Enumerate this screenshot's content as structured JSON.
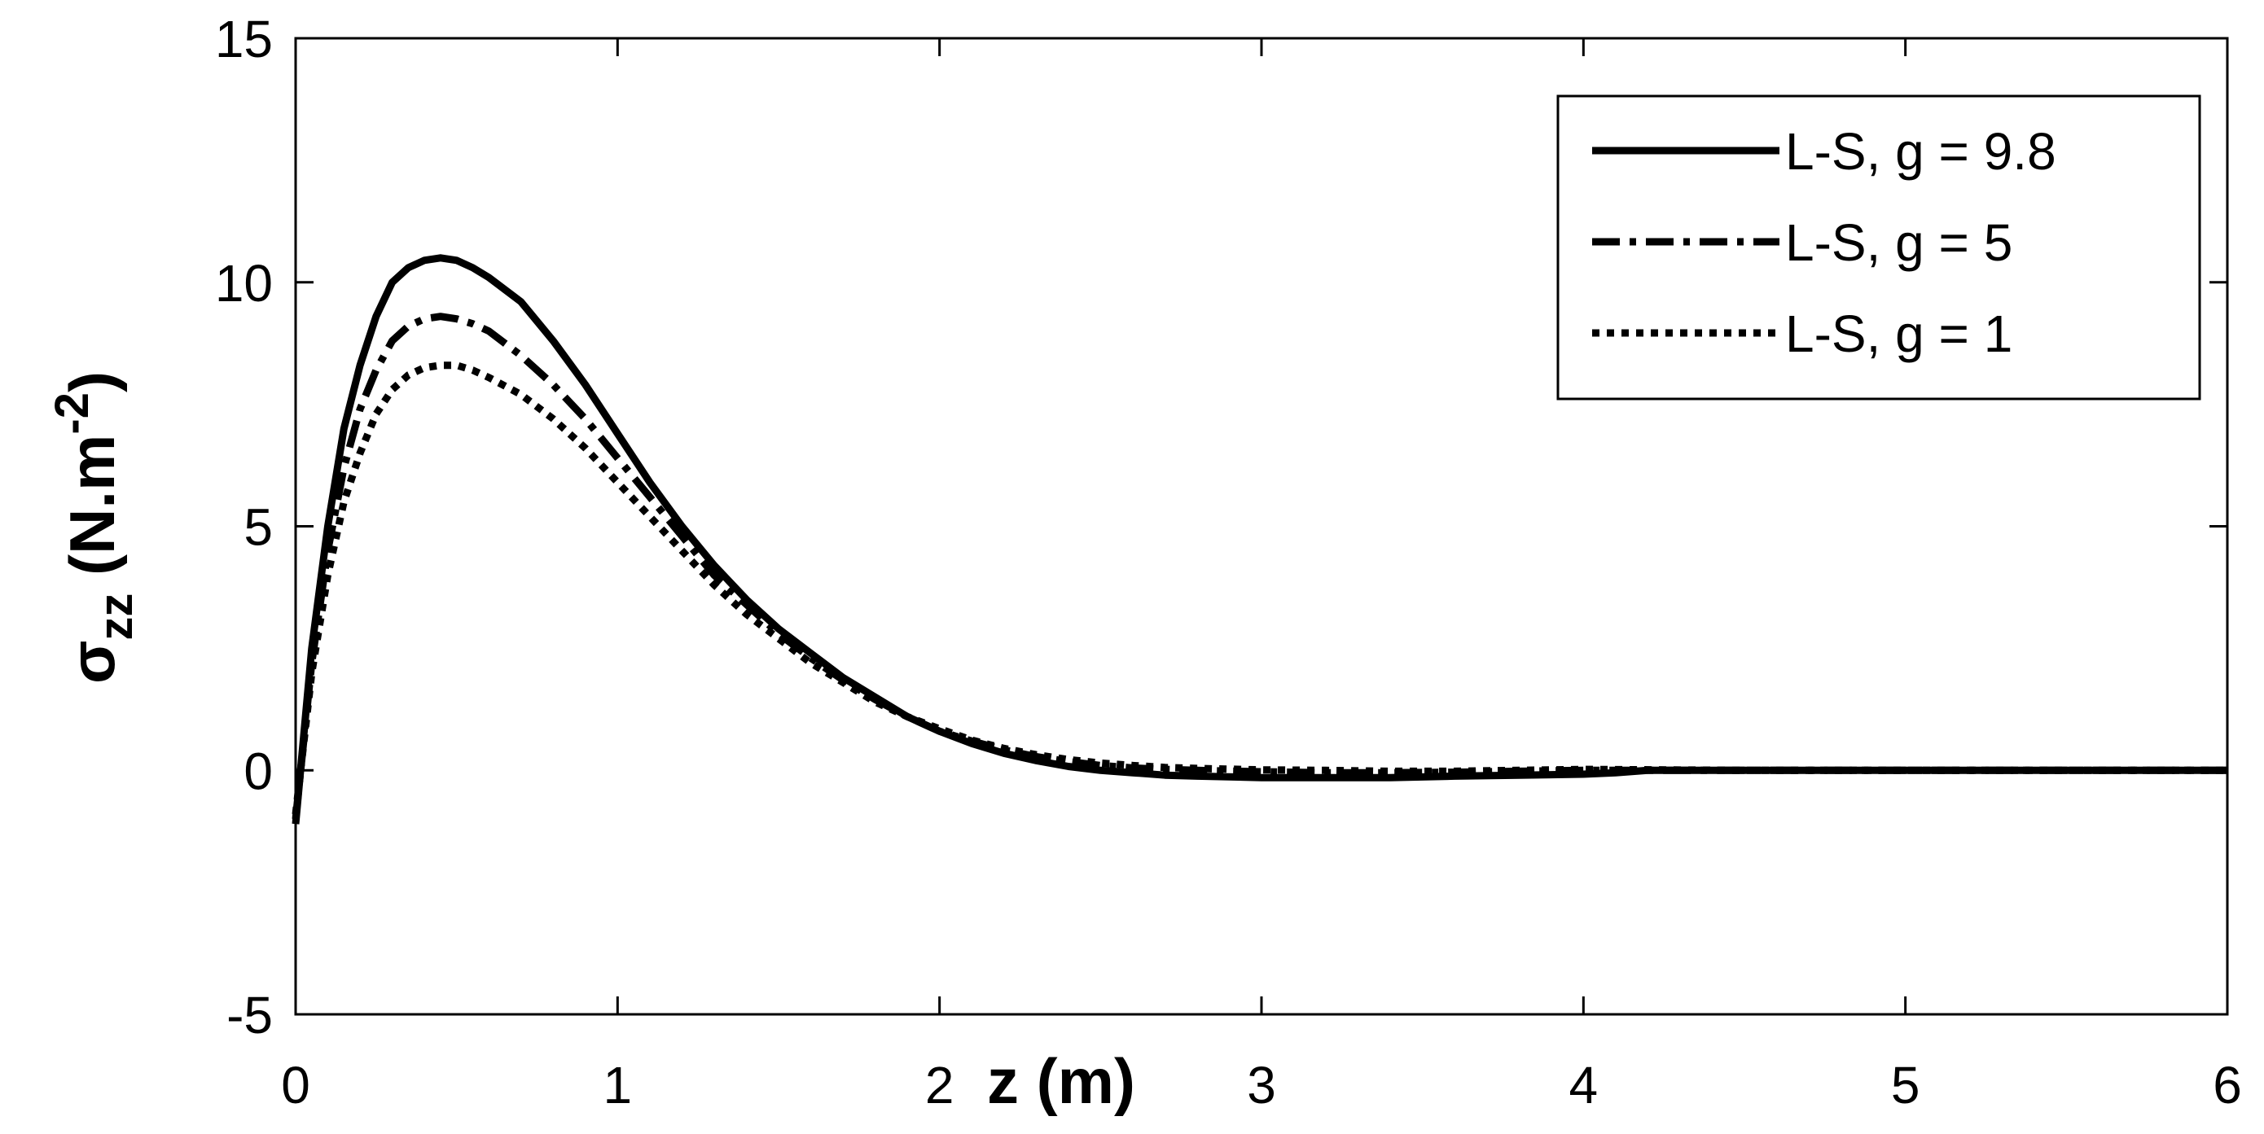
{
  "chart_data": {
    "type": "line",
    "title": "",
    "xlabel": "z (m)",
    "ylabel": {
      "sigma": "σ",
      "subscript": "zz",
      "unit_open": " (N.m",
      "unit_exp": "-2",
      "unit_close": ")"
    },
    "xlim": [
      0,
      6
    ],
    "ylim": [
      -5,
      15
    ],
    "xticks": [
      0,
      1,
      2,
      3,
      4,
      5,
      6
    ],
    "yticks": [
      -5,
      0,
      5,
      10,
      15
    ],
    "xtick_labels": [
      "0",
      "1",
      "2",
      "3",
      "4",
      "5",
      "6"
    ],
    "ytick_labels": [
      "-5",
      "0",
      "5",
      "10",
      "15"
    ],
    "grid": false,
    "legend_position": "top-right",
    "series": [
      {
        "name": "L-S, g = 9.8",
        "style": "solid",
        "x": [
          0,
          0.05,
          0.1,
          0.15,
          0.2,
          0.25,
          0.3,
          0.35,
          0.4,
          0.45,
          0.5,
          0.55,
          0.6,
          0.7,
          0.8,
          0.9,
          1.0,
          1.1,
          1.2,
          1.3,
          1.4,
          1.5,
          1.6,
          1.7,
          1.8,
          1.9,
          2.0,
          2.1,
          2.2,
          2.3,
          2.4,
          2.5,
          2.6,
          2.7,
          2.8,
          3.0,
          3.2,
          3.4,
          3.6,
          3.8,
          4.0,
          4.1,
          4.2,
          4.5,
          5.0,
          5.5,
          6.0
        ],
        "y": [
          -1.1,
          2.5,
          5.0,
          7.0,
          8.3,
          9.3,
          10.0,
          10.3,
          10.45,
          10.5,
          10.45,
          10.3,
          10.1,
          9.6,
          8.8,
          7.9,
          6.9,
          5.9,
          5.0,
          4.2,
          3.5,
          2.9,
          2.4,
          1.9,
          1.5,
          1.1,
          0.8,
          0.55,
          0.35,
          0.2,
          0.08,
          0.0,
          -0.05,
          -0.1,
          -0.12,
          -0.15,
          -0.15,
          -0.15,
          -0.12,
          -0.1,
          -0.08,
          -0.05,
          0.0,
          0.0,
          0.0,
          0.0,
          0.0
        ]
      },
      {
        "name": "L-S, g = 5",
        "style": "dashdot",
        "x": [
          0,
          0.05,
          0.1,
          0.15,
          0.2,
          0.25,
          0.3,
          0.35,
          0.4,
          0.45,
          0.5,
          0.55,
          0.6,
          0.7,
          0.8,
          0.9,
          1.0,
          1.1,
          1.2,
          1.3,
          1.4,
          1.5,
          1.6,
          1.7,
          1.8,
          1.9,
          2.0,
          2.1,
          2.2,
          2.3,
          2.4,
          2.5,
          2.6,
          2.7,
          2.8,
          3.0,
          3.2,
          3.4,
          3.6,
          3.8,
          4.0,
          4.5,
          5.0,
          5.5,
          6.0
        ],
        "y": [
          -1.0,
          2.2,
          4.5,
          6.2,
          7.4,
          8.2,
          8.8,
          9.1,
          9.25,
          9.3,
          9.25,
          9.15,
          9.0,
          8.5,
          7.9,
          7.2,
          6.4,
          5.6,
          4.8,
          4.0,
          3.4,
          2.8,
          2.3,
          1.85,
          1.45,
          1.1,
          0.8,
          0.6,
          0.42,
          0.28,
          0.18,
          0.1,
          0.05,
          0.02,
          0.0,
          -0.03,
          -0.05,
          -0.05,
          -0.04,
          -0.02,
          0.0,
          0.0,
          0.0,
          0.0,
          0.0
        ]
      },
      {
        "name": "L-S, g = 1",
        "style": "dotted",
        "x": [
          0,
          0.05,
          0.1,
          0.15,
          0.2,
          0.25,
          0.3,
          0.35,
          0.4,
          0.45,
          0.5,
          0.55,
          0.6,
          0.7,
          0.8,
          0.9,
          1.0,
          1.1,
          1.2,
          1.3,
          1.4,
          1.5,
          1.6,
          1.7,
          1.8,
          1.9,
          2.0,
          2.1,
          2.2,
          2.3,
          2.4,
          2.5,
          2.6,
          2.7,
          2.8,
          3.0,
          3.2,
          3.4,
          3.6,
          3.8,
          4.0,
          4.5,
          5.0,
          5.5,
          6.0
        ],
        "y": [
          -0.9,
          2.0,
          4.0,
          5.5,
          6.5,
          7.3,
          7.8,
          8.1,
          8.25,
          8.3,
          8.3,
          8.2,
          8.05,
          7.7,
          7.2,
          6.6,
          5.9,
          5.2,
          4.5,
          3.8,
          3.2,
          2.7,
          2.2,
          1.8,
          1.4,
          1.1,
          0.85,
          0.62,
          0.45,
          0.32,
          0.22,
          0.15,
          0.1,
          0.06,
          0.04,
          0.01,
          0.0,
          -0.02,
          -0.02,
          0.0,
          0.02,
          0.0,
          0.0,
          0.0,
          0.0
        ]
      }
    ]
  }
}
